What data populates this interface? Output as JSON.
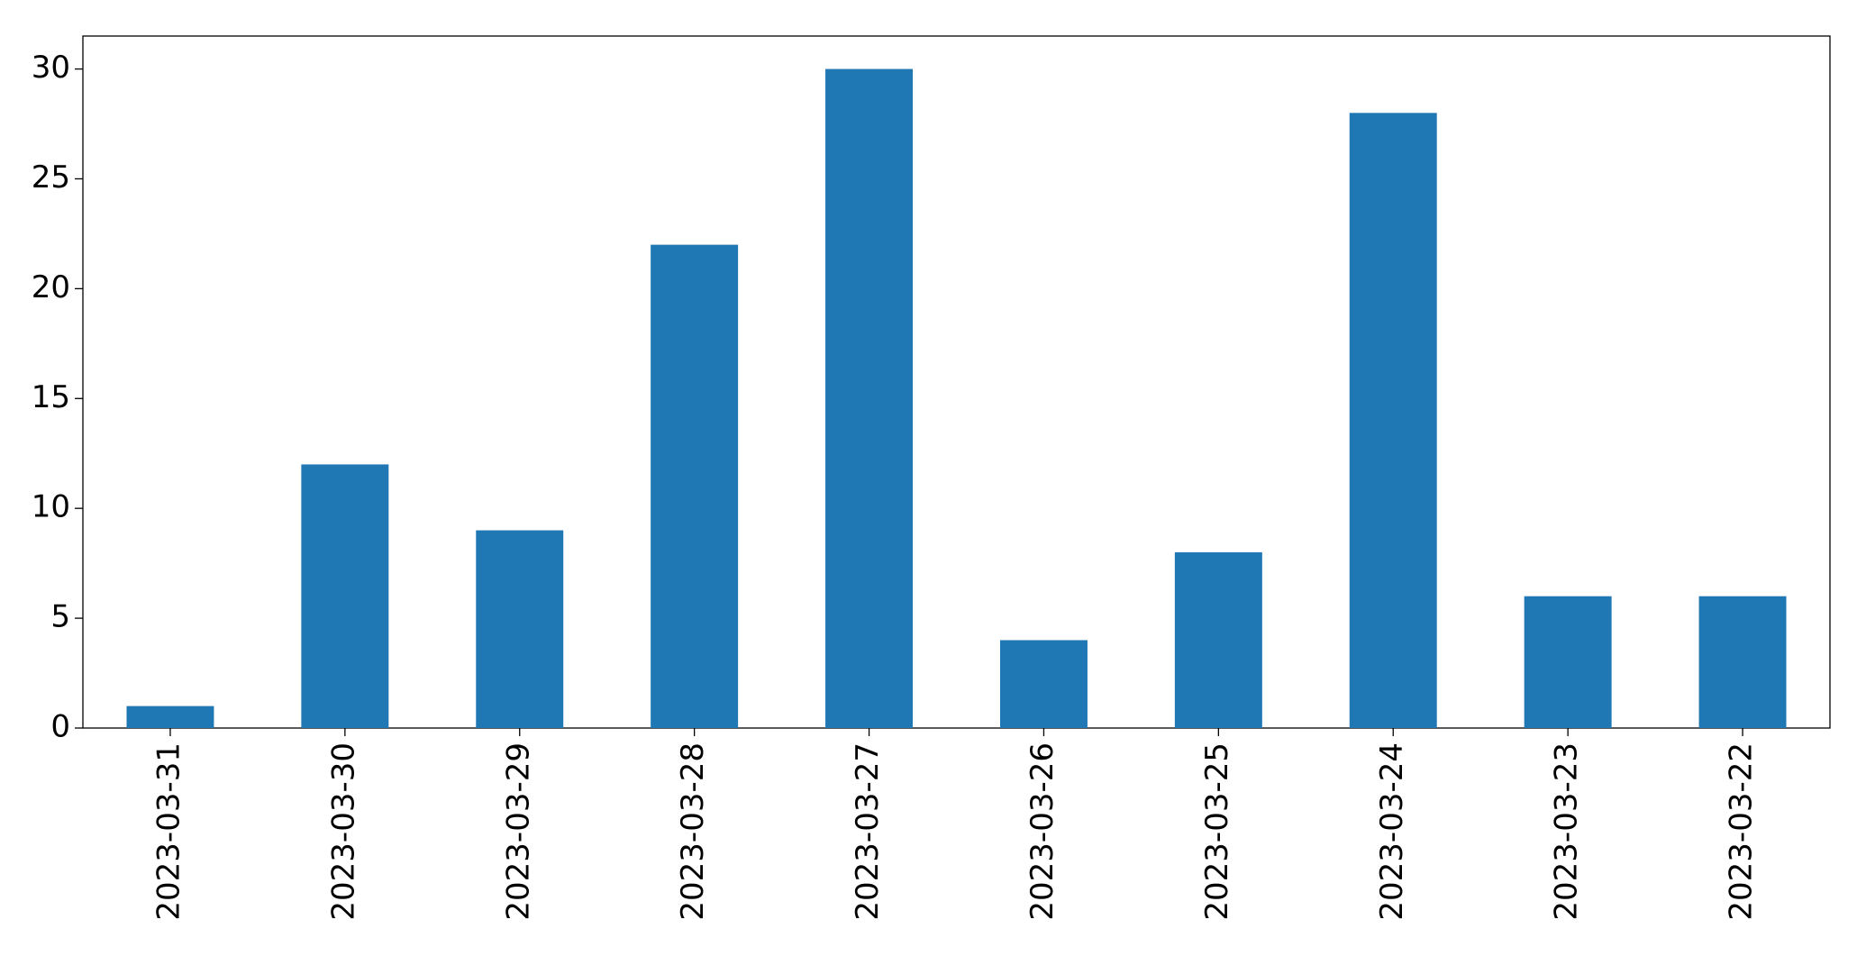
{
  "chart_data": {
    "type": "bar",
    "categories": [
      "2023-03-31",
      "2023-03-30",
      "2023-03-29",
      "2023-03-28",
      "2023-03-27",
      "2023-03-26",
      "2023-03-25",
      "2023-03-24",
      "2023-03-23",
      "2023-03-22"
    ],
    "values": [
      1,
      12,
      9,
      22,
      30,
      4,
      8,
      28,
      6,
      6
    ],
    "color": "#1f77b4",
    "ylim": [
      0,
      31.5
    ],
    "yticks": [
      0,
      5,
      10,
      15,
      20,
      25,
      30
    ],
    "grid": false
  }
}
